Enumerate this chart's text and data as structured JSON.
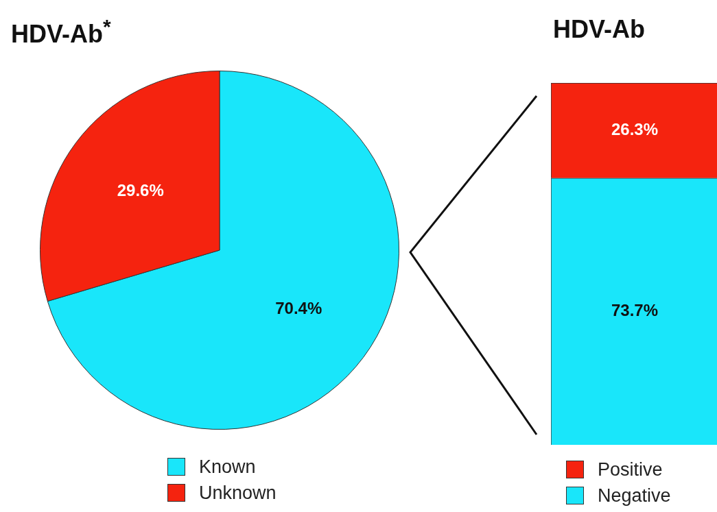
{
  "chart_data": [
    {
      "type": "pie",
      "title": "HDV-Ab$^{*}$",
      "categories": [
        "Known",
        "Unknown"
      ],
      "values": [
        70.4,
        29.6
      ],
      "colors": [
        "#19e6fa",
        "#f5230f"
      ],
      "value_labels": [
        "70.4%",
        "29.6%"
      ],
      "legend": "bottom"
    },
    {
      "type": "bar",
      "title": "HDV-Ab",
      "stacked": true,
      "categories": [
        null
      ],
      "series": [
        {
          "name": "Negative",
          "color": "#19e6fa",
          "values": [
            73.7
          ],
          "value_labels": [
            "73.7%"
          ]
        },
        {
          "name": "Positive",
          "color": "#f5230f",
          "values": [
            26.3
          ],
          "value_labels": [
            "26.3%"
          ]
        }
      ],
      "legend": "bottom"
    }
  ]
}
